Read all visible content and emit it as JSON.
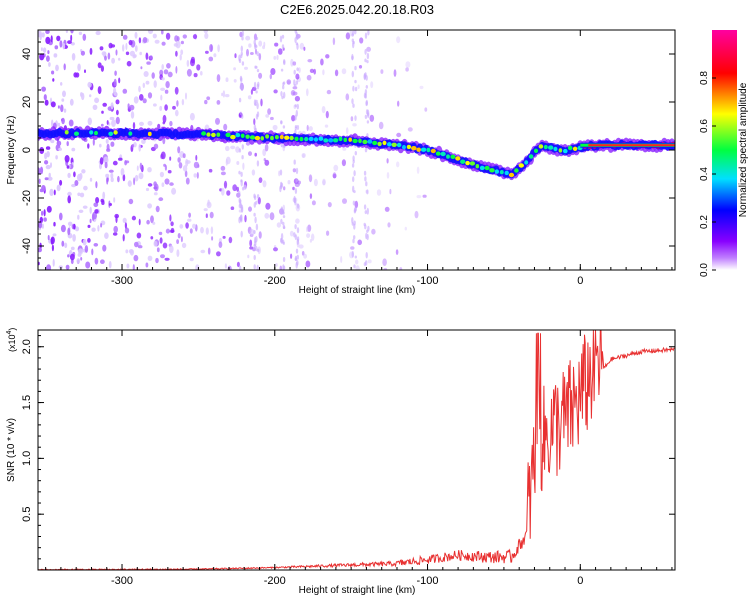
{
  "page_title": "C2E6.2025.042.20.18.R03",
  "chart_data": [
    {
      "type": "heatmap",
      "xlabel": "Height of straight line (km)",
      "ylabel": "Frequency (Hz)",
      "xlim": [
        -355,
        62
      ],
      "ylim": [
        -50,
        50
      ],
      "x_ticks": [
        -300,
        -200,
        -100,
        0
      ],
      "y_ticks": [
        -40,
        -20,
        0,
        20,
        40
      ],
      "x_tick_labels": [
        "-300",
        "-200",
        "-100",
        "0"
      ],
      "y_tick_labels": [
        "-40",
        "-20",
        "0",
        "20",
        "40"
      ],
      "colorbar": {
        "label": "Normalized spectral amplitude",
        "range": [
          0,
          1
        ],
        "ticks": [
          0.0,
          0.2,
          0.4,
          0.6,
          0.8
        ],
        "tick_labels": [
          "0.0",
          "0.2",
          "0.4",
          "0.6",
          "0.8"
        ],
        "colors": [
          "#ffffff",
          "#8800ff",
          "#0000ff",
          "#00e0ff",
          "#00ff40",
          "#ffff00",
          "#ff0000",
          "#ff00a0"
        ]
      },
      "ridge": {
        "name": "",
        "x": [
          -355,
          -300,
          -250,
          -200,
          -150,
          -120,
          -100,
          -80,
          -60,
          -45,
          -35,
          -30,
          -25,
          -20,
          -10,
          0,
          10,
          62
        ],
        "y": [
          7,
          7,
          6.5,
          5,
          4,
          2,
          0,
          -4,
          -8,
          -10,
          -5,
          -1,
          2,
          1,
          0,
          1,
          2,
          2
        ]
      },
      "noise_region_x": [
        -355,
        -140
      ]
    },
    {
      "type": "line",
      "xlabel": "Height of straight line (km)",
      "ylabel": "SNR (10 * v/v)",
      "y_multiplier": "(x10",
      "y_multiplier_exp": "4",
      "y_multiplier_close": ")",
      "xlim": [
        -355,
        62
      ],
      "ylim": [
        0,
        2.15
      ],
      "x_ticks": [
        -300,
        -200,
        -100,
        0
      ],
      "y_ticks": [
        0.5,
        1.0,
        1.5,
        2.0
      ],
      "x_tick_labels": [
        "-300",
        "-200",
        "-100",
        "0"
      ],
      "y_tick_labels": [
        "0.5",
        "1.0",
        "1.5",
        "2.0"
      ],
      "color": "#e83030",
      "series": [
        {
          "name": "",
          "x": [
            -355,
            -250,
            -200,
            -150,
            -120,
            -100,
            -80,
            -60,
            -45,
            -35,
            -30,
            -28,
            -25,
            -20,
            -10,
            0,
            10,
            20,
            40,
            62
          ],
          "y": [
            0.0,
            0.005,
            0.02,
            0.04,
            0.05,
            0.08,
            0.12,
            0.1,
            0.1,
            0.3,
            0.8,
            1.1,
            1.0,
            1.1,
            1.2,
            1.4,
            1.7,
            1.88,
            1.95,
            1.97
          ]
        }
      ]
    }
  ]
}
